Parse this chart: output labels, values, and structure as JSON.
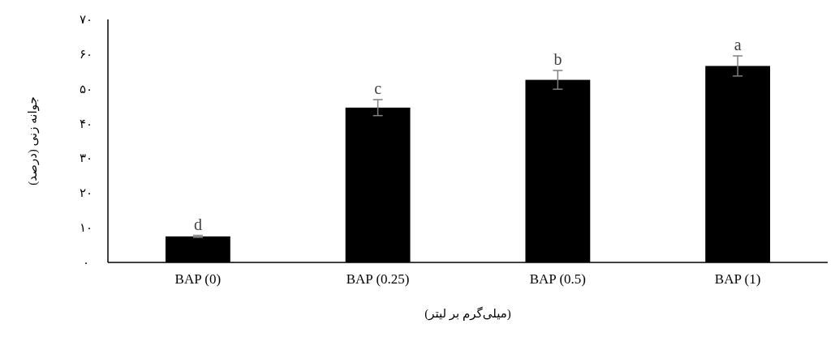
{
  "chart_data": {
    "type": "bar",
    "categories": [
      "BAP (0)",
      "BAP (0.25)",
      "BAP (0.5)",
      "BAP (1)"
    ],
    "values": [
      7.5,
      44.6,
      52.6,
      56.6
    ],
    "errors": [
      0.3,
      2.3,
      2.7,
      2.9
    ],
    "color": "#000000",
    "xlabel": "(میلی‌گرم بر لیتر)",
    "ylabel": "جوانه زنی (درصد)",
    "ylim": [
      0,
      70
    ],
    "yticks": [
      {
        "value": 0,
        "label": "۰"
      },
      {
        "value": 10,
        "label": "۱۰"
      },
      {
        "value": 20,
        "label": "۲۰"
      },
      {
        "value": 30,
        "label": "۳۰"
      },
      {
        "value": 40,
        "label": "۴۰"
      },
      {
        "value": 50,
        "label": "۵۰"
      },
      {
        "value": 60,
        "label": "۶۰"
      },
      {
        "value": 70,
        "label": "۷۰"
      }
    ],
    "annotations": [
      "d",
      "c",
      "b",
      "a"
    ],
    "grid": false
  }
}
